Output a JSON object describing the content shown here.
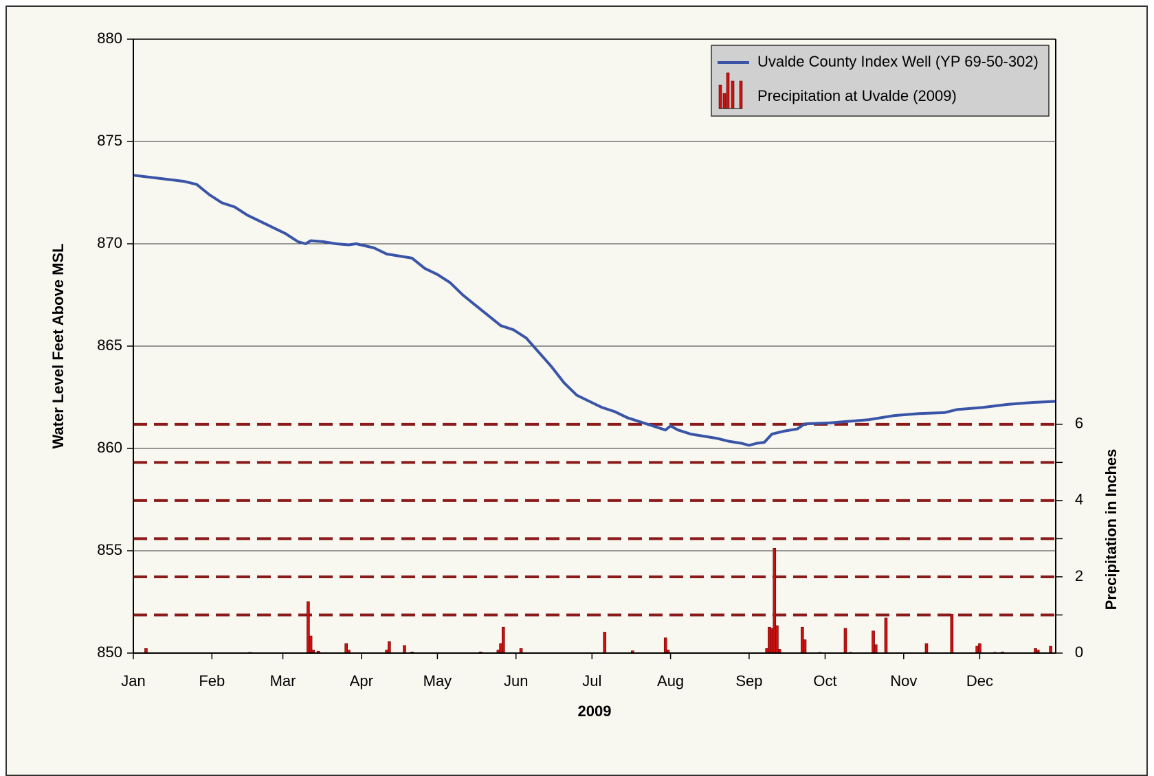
{
  "chart_data": {
    "type": "line",
    "xlabel": "2009",
    "ylabel": "Water Level Feet Above MSL",
    "y2label": "Precipitation in Inches",
    "xlim": [
      0,
      364
    ],
    "xticks": [
      {
        "value": 0,
        "label": "Jan"
      },
      {
        "value": 31,
        "label": "Feb"
      },
      {
        "value": 59,
        "label": "Mar"
      },
      {
        "value": 90,
        "label": "Apr"
      },
      {
        "value": 120,
        "label": "May"
      },
      {
        "value": 151,
        "label": "Jun"
      },
      {
        "value": 181,
        "label": "Jul"
      },
      {
        "value": 212,
        "label": "Aug"
      },
      {
        "value": 243,
        "label": "Sep"
      },
      {
        "value": 273,
        "label": "Oct"
      },
      {
        "value": 304,
        "label": "Nov"
      },
      {
        "value": 334,
        "label": "Dec"
      }
    ],
    "ylim": [
      850,
      880
    ],
    "yticks": [
      850,
      855,
      860,
      865,
      870,
      875,
      880
    ],
    "y2lim": [
      0,
      16.1
    ],
    "y2ticks": [
      0,
      2,
      4,
      6
    ],
    "y2minorticks": [
      1,
      3,
      5
    ],
    "grid": true,
    "legend": "upper right",
    "series": [
      {
        "name": "Uvalde County Index Well (YP 69-50-302)",
        "color": "#3a55a8",
        "type": "line",
        "x": [
          0,
          10,
          20,
          25,
          30,
          35,
          40,
          45,
          50,
          55,
          60,
          65,
          68,
          70,
          75,
          80,
          85,
          88,
          95,
          100,
          105,
          110,
          115,
          120,
          125,
          130,
          135,
          140,
          145,
          150,
          155,
          160,
          165,
          170,
          175,
          180,
          185,
          190,
          195,
          200,
          205,
          210,
          212,
          215,
          220,
          225,
          230,
          235,
          240,
          243,
          246,
          249,
          252,
          257,
          262,
          265,
          275,
          280,
          290,
          300,
          310,
          320,
          325,
          335,
          345,
          355,
          364
        ],
        "values": [
          873.35,
          873.2,
          873.05,
          872.9,
          872.4,
          872.0,
          871.8,
          871.4,
          871.1,
          870.8,
          870.5,
          870.1,
          870.0,
          870.15,
          870.1,
          870.0,
          869.95,
          870.0,
          869.8,
          869.5,
          869.4,
          869.3,
          868.8,
          868.5,
          868.1,
          867.5,
          867.0,
          866.5,
          866.0,
          865.8,
          865.4,
          864.7,
          864.0,
          863.2,
          862.6,
          862.3,
          862.0,
          861.8,
          861.5,
          861.3,
          861.1,
          860.9,
          861.1,
          860.9,
          860.7,
          860.6,
          860.5,
          860.35,
          860.25,
          860.15,
          860.25,
          860.3,
          860.7,
          860.85,
          860.95,
          861.2,
          861.25,
          861.3,
          861.4,
          861.6,
          861.7,
          861.75,
          861.9,
          862.0,
          862.15,
          862.25,
          862.3
        ]
      },
      {
        "name": "Precipitation at Uvalde (2009)",
        "color": "#cc1111",
        "type": "bar",
        "axis": "y2",
        "x": [
          5,
          46,
          69,
          70,
          71,
          73,
          84,
          85,
          100,
          101,
          107,
          110,
          137,
          144,
          145,
          146,
          153,
          186,
          197,
          210,
          211,
          250,
          251,
          252,
          253,
          254,
          255,
          264,
          265,
          271,
          281,
          283,
          292,
          293,
          297,
          313,
          323,
          333,
          334,
          340,
          343,
          356,
          357,
          362
        ],
        "values": [
          0.12,
          0.02,
          1.35,
          0.45,
          0.08,
          0.05,
          0.25,
          0.08,
          0.08,
          0.3,
          0.2,
          0.03,
          0.03,
          0.08,
          0.25,
          0.68,
          0.12,
          0.55,
          0.06,
          0.4,
          0.08,
          0.12,
          0.68,
          0.65,
          2.75,
          0.72,
          0.1,
          0.68,
          0.35,
          0.02,
          0.65,
          0.02,
          0.58,
          0.22,
          0.92,
          0.25,
          1.02,
          0.18,
          0.25,
          0.02,
          0.03,
          0.12,
          0.08,
          0.18
        ]
      }
    ]
  }
}
